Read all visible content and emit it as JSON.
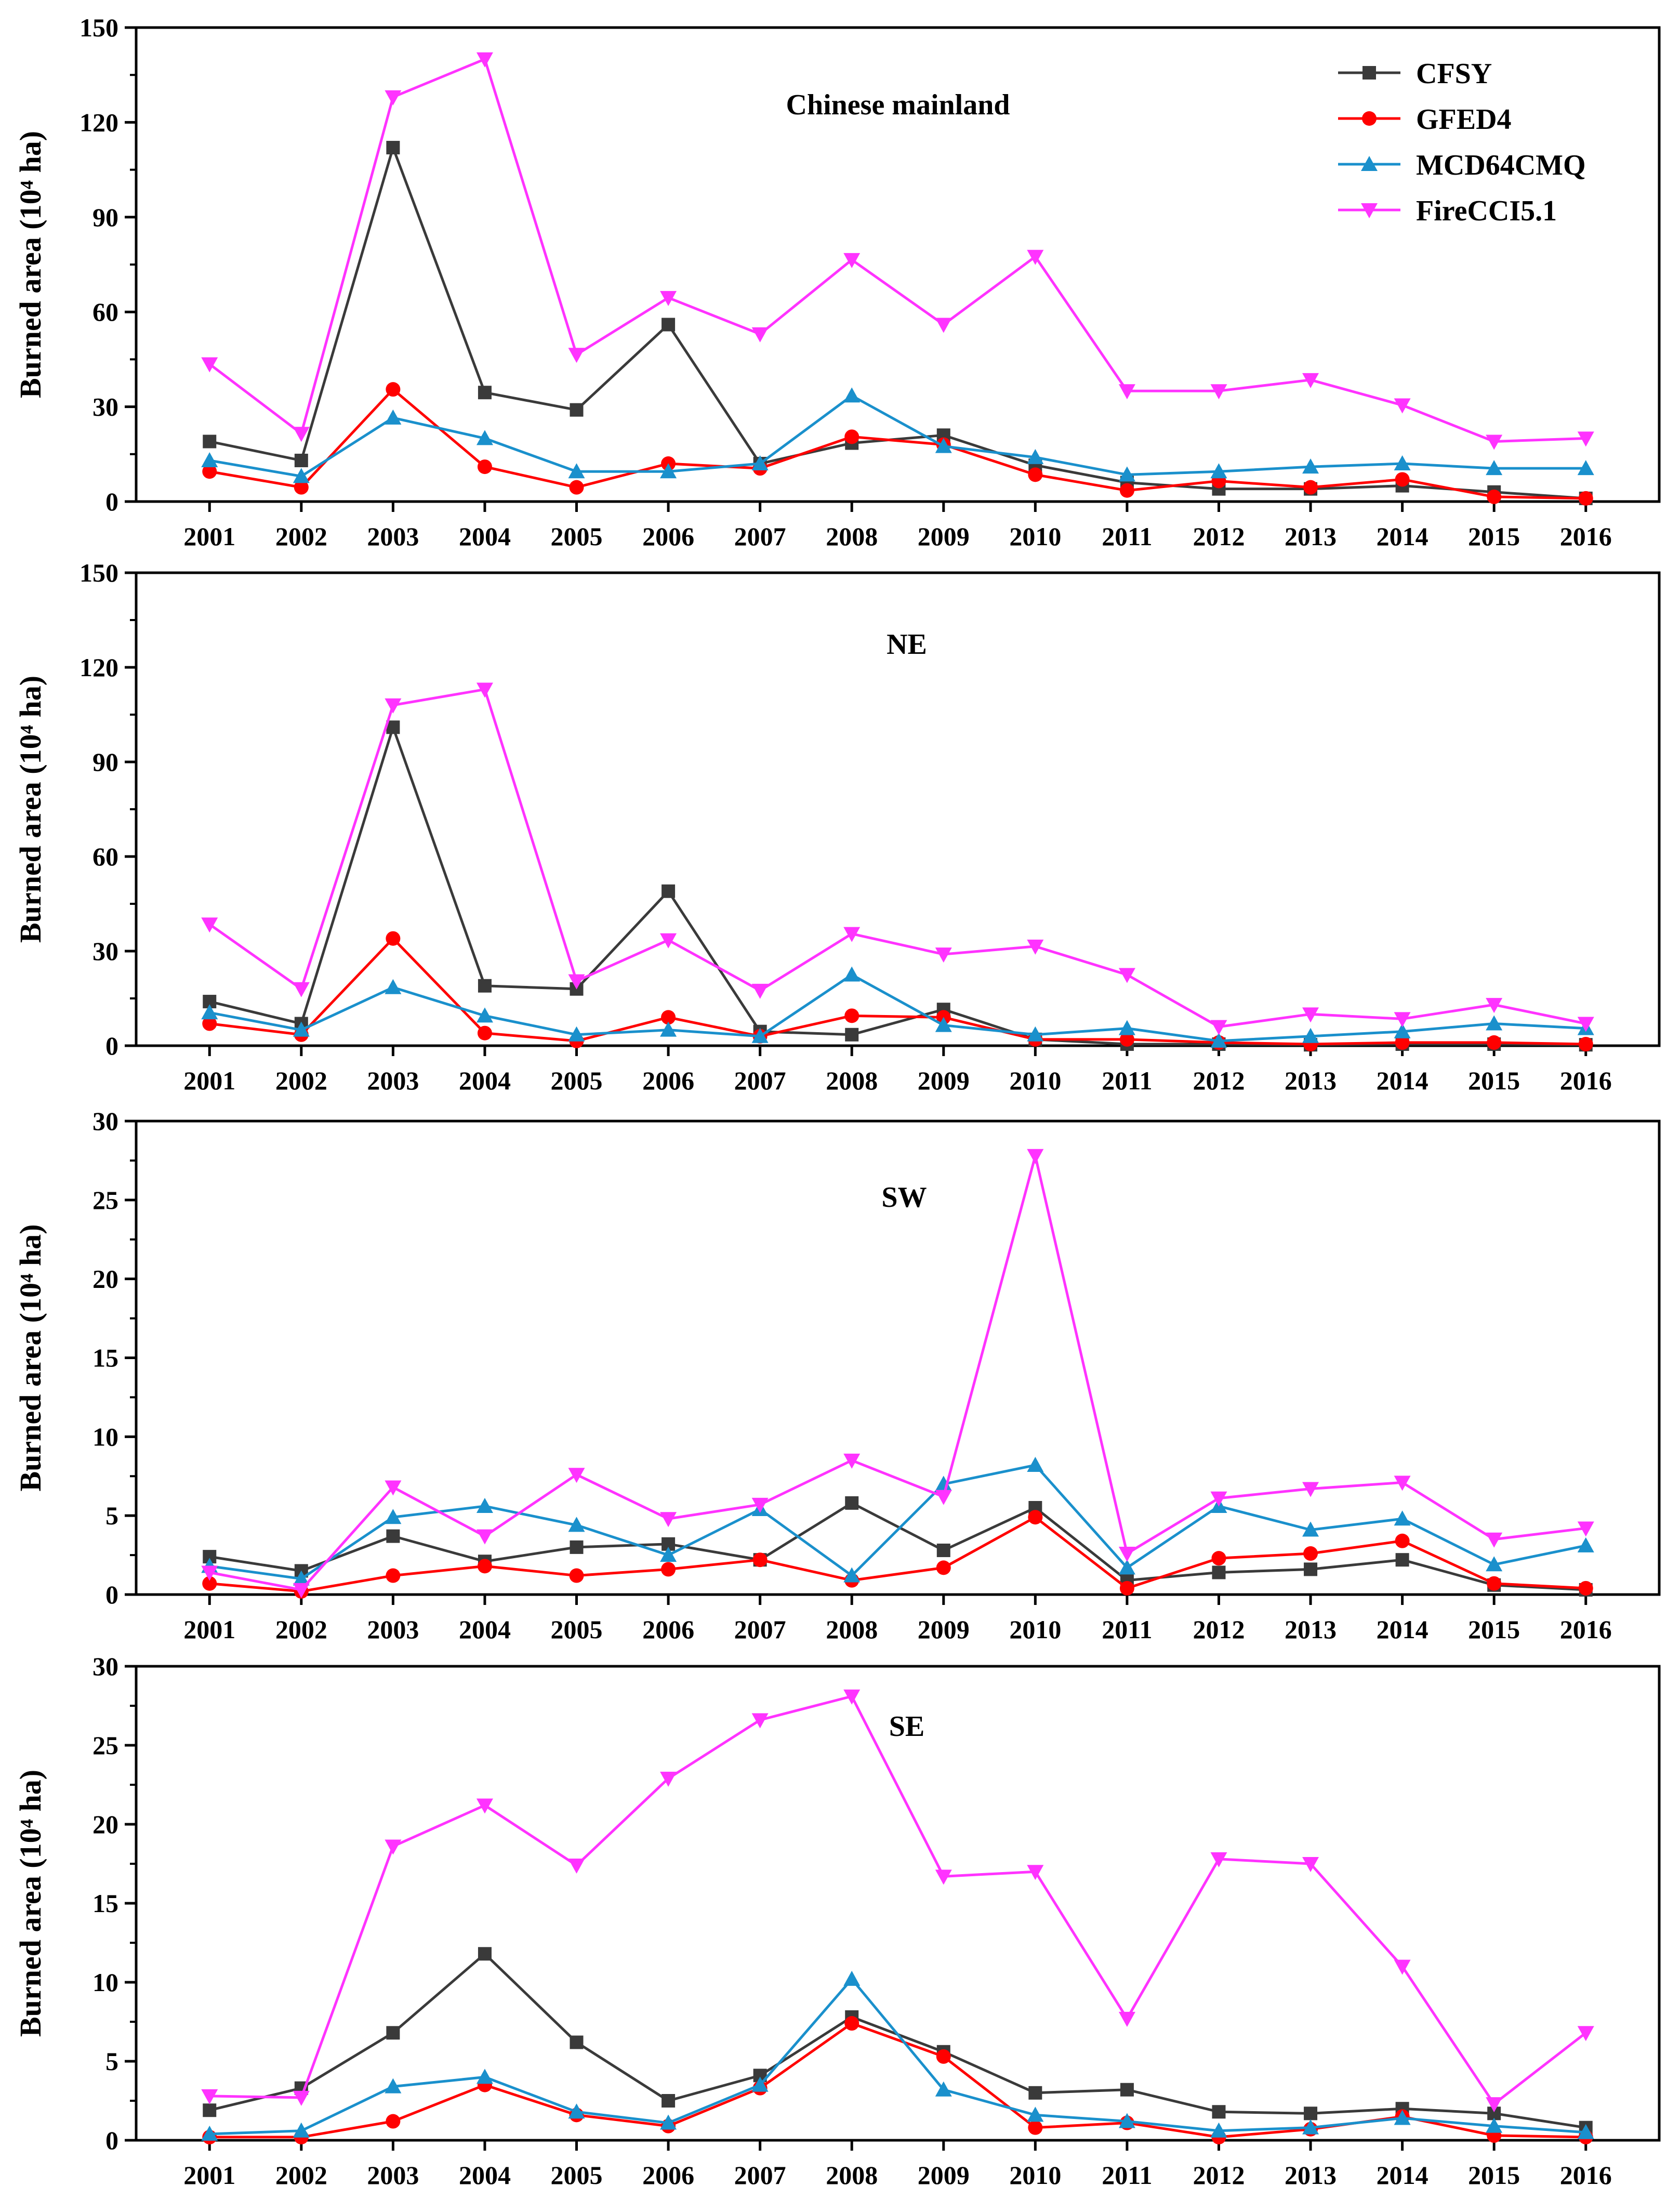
{
  "figure": {
    "legend_location": "top-right of first panel"
  },
  "chart_data": [
    {
      "type": "line",
      "title": "Chinese mainland",
      "xlabel": "",
      "ylabel": "Burned area (10⁴ ha)",
      "ylim": [
        0,
        150
      ],
      "yticks": [
        "0",
        "30",
        "60",
        "90",
        "120",
        "150"
      ],
      "x": [
        "2001",
        "2002",
        "2003",
        "2004",
        "2005",
        "2006",
        "2007",
        "2008",
        "2009",
        "2010",
        "2011",
        "2012",
        "2013",
        "2014",
        "2015",
        "2016"
      ],
      "show_legend": true,
      "legend": [
        "CFSY",
        "GFED4",
        "MCD64CMQ",
        "FireCCI5.1"
      ],
      "series": [
        {
          "name": "CFSY",
          "color": "#3a3a3a",
          "marker": "square",
          "values": [
            19,
            13,
            112,
            34.5,
            29,
            56,
            12,
            18.5,
            21,
            11.5,
            6,
            4,
            4,
            5,
            3,
            1
          ]
        },
        {
          "name": "GFED4",
          "color": "#ff0000",
          "marker": "circle",
          "values": [
            9.5,
            4.5,
            35.5,
            11,
            4.5,
            12,
            10.5,
            20.5,
            18,
            8.5,
            3.5,
            6.5,
            4.5,
            7,
            1.5,
            1
          ]
        },
        {
          "name": "MCD64CMQ",
          "color": "#1a90cc",
          "marker": "triangle-up",
          "values": [
            13,
            8,
            26.5,
            20,
            9.5,
            9.5,
            12,
            33.5,
            17.5,
            14,
            8.5,
            9.5,
            11,
            12,
            10.5,
            10.5
          ]
        },
        {
          "name": "FireCCI5.1",
          "color": "#ff33ff",
          "marker": "triangle-down",
          "values": [
            43.5,
            21.5,
            128,
            140,
            46.5,
            64.5,
            53,
            76.5,
            56,
            77.5,
            35,
            35,
            38.5,
            30.5,
            19,
            20
          ]
        }
      ]
    },
    {
      "type": "line",
      "title": "NE",
      "xlabel": "",
      "ylabel": "Burned area (10⁴ ha)",
      "ylim": [
        0,
        150
      ],
      "yticks": [
        "0",
        "30",
        "60",
        "90",
        "120",
        "150"
      ],
      "x": [
        "2001",
        "2002",
        "2003",
        "2004",
        "2005",
        "2006",
        "2007",
        "2008",
        "2009",
        "2010",
        "2011",
        "2012",
        "2013",
        "2014",
        "2015",
        "2016"
      ],
      "show_legend": false,
      "series": [
        {
          "name": "CFSY",
          "color": "#3a3a3a",
          "marker": "square",
          "values": [
            14,
            7,
            101,
            19,
            18,
            49,
            4.5,
            3.5,
            11.5,
            2,
            0.5,
            0.5,
            0.3,
            0.5,
            0.5,
            0.3
          ]
        },
        {
          "name": "GFED4",
          "color": "#ff0000",
          "marker": "circle",
          "values": [
            7,
            3.5,
            34,
            4,
            1.5,
            9,
            3,
            9.5,
            9,
            2,
            2,
            1,
            0.5,
            1,
            1,
            0.5
          ]
        },
        {
          "name": "MCD64CMQ",
          "color": "#1a90cc",
          "marker": "triangle-up",
          "values": [
            10.5,
            5,
            18.5,
            9.5,
            3.5,
            5,
            3,
            22.5,
            6.5,
            3.5,
            5.5,
            1.5,
            3,
            4.5,
            7,
            5.5
          ]
        },
        {
          "name": "FireCCI5.1",
          "color": "#ff33ff",
          "marker": "triangle-down",
          "values": [
            38.5,
            18,
            108,
            113,
            20.5,
            33.5,
            17.5,
            35.5,
            29,
            31.5,
            22.5,
            6,
            10,
            8.5,
            13,
            7
          ]
        }
      ]
    },
    {
      "type": "line",
      "title": "SW",
      "xlabel": "",
      "ylabel": "Burned area (10⁴ ha)",
      "ylim": [
        0,
        30
      ],
      "yticks": [
        "0",
        "5",
        "10",
        "15",
        "20",
        "25",
        "30"
      ],
      "x": [
        "2001",
        "2002",
        "2003",
        "2004",
        "2005",
        "2006",
        "2007",
        "2008",
        "2009",
        "2010",
        "2011",
        "2012",
        "2013",
        "2014",
        "2015",
        "2016"
      ],
      "show_legend": false,
      "series": [
        {
          "name": "CFSY",
          "color": "#3a3a3a",
          "marker": "square",
          "values": [
            2.4,
            1.5,
            3.7,
            2.1,
            3,
            3.2,
            2.2,
            5.8,
            2.8,
            5.5,
            0.9,
            1.4,
            1.6,
            2.2,
            0.6,
            0.3
          ]
        },
        {
          "name": "GFED4",
          "color": "#ff0000",
          "marker": "circle",
          "values": [
            0.7,
            0.2,
            1.2,
            1.8,
            1.2,
            1.6,
            2.2,
            0.9,
            1.7,
            4.9,
            0.4,
            2.3,
            2.6,
            3.4,
            0.7,
            0.4
          ]
        },
        {
          "name": "MCD64CMQ",
          "color": "#1a90cc",
          "marker": "triangle-up",
          "values": [
            1.8,
            1,
            4.9,
            5.6,
            4.4,
            2.5,
            5.4,
            1.2,
            7,
            8.2,
            1.7,
            5.6,
            4.1,
            4.8,
            1.9,
            3.1
          ]
        },
        {
          "name": "FireCCI5.1",
          "color": "#ff33ff",
          "marker": "triangle-down",
          "values": [
            1.4,
            0.3,
            6.8,
            3.7,
            7.6,
            4.8,
            5.7,
            8.5,
            6.2,
            27.8,
            2.6,
            6.1,
            6.7,
            7.1,
            3.5,
            4.2
          ]
        }
      ]
    },
    {
      "type": "line",
      "title": "SE",
      "xlabel": "",
      "ylabel": "Burned area (10⁴ ha)",
      "ylim": [
        0,
        30
      ],
      "yticks": [
        "0",
        "5",
        "10",
        "15",
        "20",
        "25",
        "30"
      ],
      "x": [
        "2001",
        "2002",
        "2003",
        "2004",
        "2005",
        "2006",
        "2007",
        "2008",
        "2009",
        "2010",
        "2011",
        "2012",
        "2013",
        "2014",
        "2015",
        "2016"
      ],
      "show_legend": false,
      "series": [
        {
          "name": "CFSY",
          "color": "#3a3a3a",
          "marker": "square",
          "values": [
            1.9,
            3.3,
            6.8,
            11.8,
            6.2,
            2.5,
            4.1,
            7.8,
            5.6,
            3,
            3.2,
            1.8,
            1.7,
            2,
            1.7,
            0.8
          ]
        },
        {
          "name": "GFED4",
          "color": "#ff0000",
          "marker": "circle",
          "values": [
            0.2,
            0.2,
            1.2,
            3.5,
            1.6,
            0.9,
            3.3,
            7.4,
            5.3,
            0.8,
            1.1,
            0.2,
            0.7,
            1.5,
            0.3,
            0.2
          ]
        },
        {
          "name": "MCD64CMQ",
          "color": "#1a90cc",
          "marker": "triangle-up",
          "values": [
            0.4,
            0.6,
            3.4,
            4,
            1.8,
            1.1,
            3.5,
            10.2,
            3.2,
            1.6,
            1.2,
            0.6,
            0.8,
            1.4,
            0.9,
            0.5
          ]
        },
        {
          "name": "FireCCI5.1",
          "color": "#ff33ff",
          "marker": "triangle-down",
          "values": [
            2.8,
            2.7,
            18.6,
            21.2,
            17.4,
            22.9,
            26.6,
            28.1,
            16.7,
            17,
            7.7,
            17.8,
            17.5,
            11,
            2.3,
            6.8
          ]
        }
      ]
    }
  ]
}
